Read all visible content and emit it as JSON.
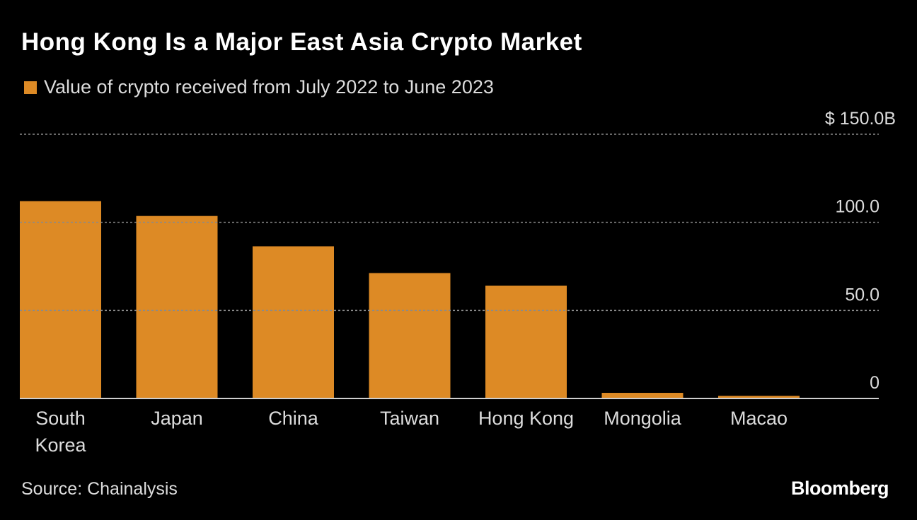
{
  "header": {
    "title": "Hong Kong Is a Major East Asia Crypto Market",
    "legend_label": "Value of crypto received from July 2022 to June 2023"
  },
  "footer": {
    "source": "Source: Chainalysis",
    "brand": "Bloomberg"
  },
  "colors": {
    "bar": "#dd8a25",
    "background": "#000000",
    "gridline": "#8a8a8a",
    "text": "#dcdcdc"
  },
  "chart_data": {
    "type": "bar",
    "categories": [
      [
        "South",
        "Korea"
      ],
      [
        "Japan"
      ],
      [
        "China"
      ],
      [
        "Taiwan"
      ],
      [
        "Hong Kong"
      ],
      [
        "Mongolia"
      ],
      [
        "Macao"
      ]
    ],
    "values": [
      112,
      103.6,
      86.4,
      71.2,
      64,
      3.2,
      1.5
    ],
    "ylim": [
      0,
      150
    ],
    "yticks": [
      {
        "value": 0,
        "label": "0"
      },
      {
        "value": 50,
        "label": "50.0"
      },
      {
        "value": 100,
        "label": "100.0"
      },
      {
        "value": 150,
        "label": "$ 150.0B"
      }
    ],
    "grid": true,
    "legend_position": "top-left"
  }
}
